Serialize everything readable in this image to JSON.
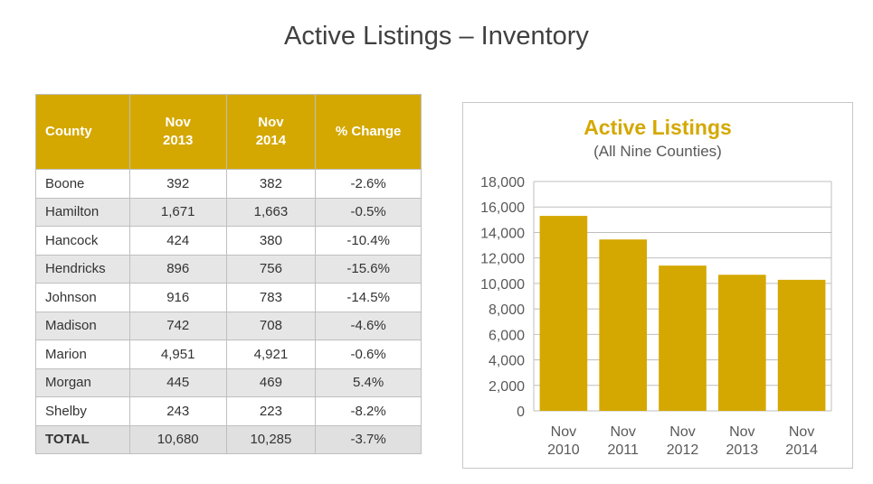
{
  "slide": {
    "title": "Active Listings – Inventory"
  },
  "table": {
    "headers": {
      "county": "County",
      "nov2013": "Nov\n2013",
      "nov2014": "Nov\n2014",
      "change": "% Change"
    },
    "rows": [
      {
        "county": "Boone",
        "nov2013": "392",
        "nov2014": "382",
        "change": "-2.6%"
      },
      {
        "county": "Hamilton",
        "nov2013": "1,671",
        "nov2014": "1,663",
        "change": "-0.5%"
      },
      {
        "county": "Hancock",
        "nov2013": "424",
        "nov2014": "380",
        "change": "-10.4%"
      },
      {
        "county": "Hendricks",
        "nov2013": "896",
        "nov2014": "756",
        "change": "-15.6%"
      },
      {
        "county": "Johnson",
        "nov2013": "916",
        "nov2014": "783",
        "change": "-14.5%"
      },
      {
        "county": "Madison",
        "nov2013": "742",
        "nov2014": "708",
        "change": "-4.6%"
      },
      {
        "county": "Marion",
        "nov2013": "4,951",
        "nov2014": "4,921",
        "change": "-0.6%"
      },
      {
        "county": "Morgan",
        "nov2013": "445",
        "nov2014": "469",
        "change": "5.4%"
      },
      {
        "county": "Shelby",
        "nov2013": "243",
        "nov2014": "223",
        "change": "-8.2%"
      }
    ],
    "total": {
      "county": "TOTAL",
      "nov2013": "10,680",
      "nov2014": "10,285",
      "change": "-3.7%"
    }
  },
  "colors": {
    "accent": "#d4a800",
    "bar": "#d4a800",
    "alt_row": "#e6e6e6",
    "grid": "#bfbfbf"
  },
  "chart_data": {
    "type": "bar",
    "title": "Active Listings",
    "subtitle": "(All Nine Counties)",
    "categories": [
      [
        "Nov",
        "2010"
      ],
      [
        "Nov",
        "2011"
      ],
      [
        "Nov",
        "2012"
      ],
      [
        "Nov",
        "2013"
      ],
      [
        "Nov",
        "2014"
      ]
    ],
    "values": [
      15300,
      13450,
      11400,
      10680,
      10285
    ],
    "ylim": [
      0,
      18000
    ],
    "yticks": [
      0,
      2000,
      4000,
      6000,
      8000,
      10000,
      12000,
      14000,
      16000,
      18000
    ],
    "ytick_labels": [
      "0",
      "2,000",
      "4,000",
      "6,000",
      "8,000",
      "10,000",
      "12,000",
      "14,000",
      "16,000",
      "18,000"
    ],
    "grid": true,
    "legend": "none"
  }
}
